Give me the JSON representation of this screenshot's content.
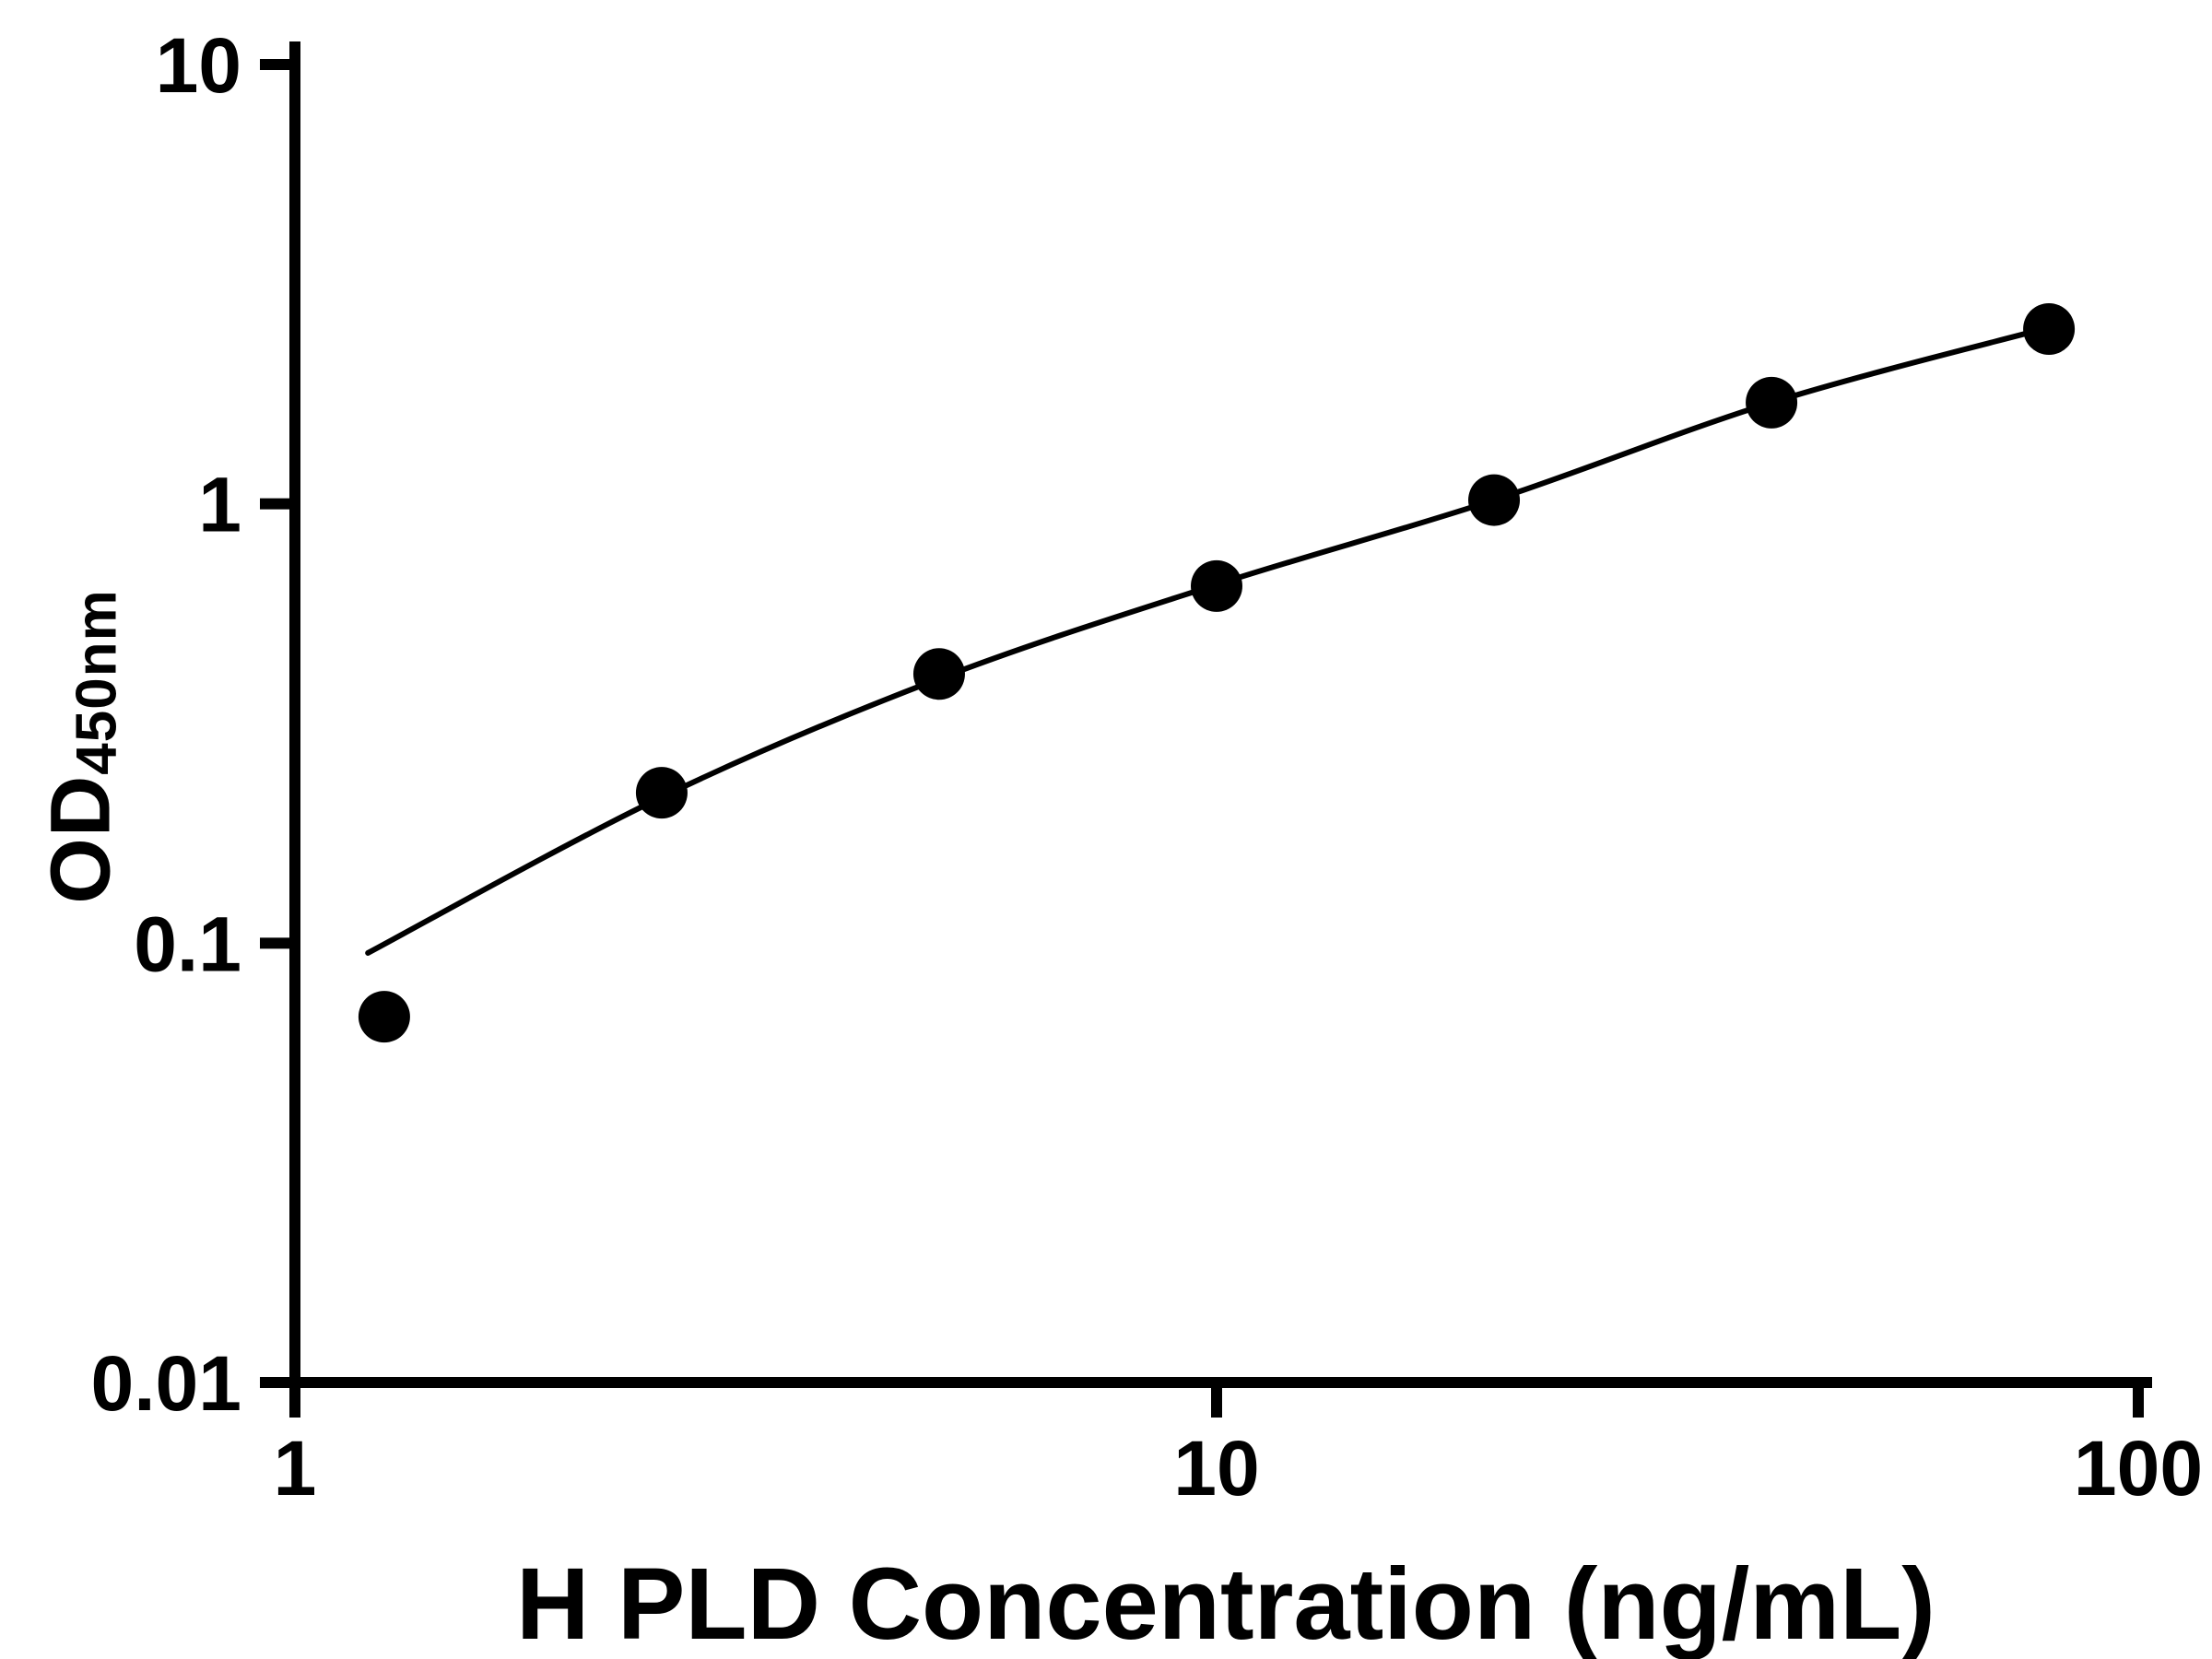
{
  "chart_data": {
    "type": "scatter",
    "title": "",
    "xlabel": "H PLD Concentration (ng/mL)",
    "ylabel": "OD450nm",
    "ylabel_main": "OD",
    "ylabel_sub": "450nm",
    "xscale": "log",
    "yscale": "log",
    "xlim": [
      1,
      100
    ],
    "ylim": [
      0.01,
      10
    ],
    "grid": false,
    "legend": null,
    "x": [
      1.25,
      2.5,
      5,
      10,
      20,
      40,
      80
    ],
    "y": [
      0.068,
      0.22,
      0.41,
      0.65,
      1.02,
      1.7,
      2.5
    ],
    "fit_curve": {
      "x": [
        1.2,
        2.5,
        5,
        10,
        20,
        40,
        80
      ],
      "y": [
        0.095,
        0.215,
        0.4,
        0.655,
        1.02,
        1.7,
        2.52
      ]
    },
    "x_ticks": [
      {
        "value": 1,
        "label": "1"
      },
      {
        "value": 10,
        "label": "10"
      },
      {
        "value": 100,
        "label": "100"
      }
    ],
    "y_ticks": [
      {
        "value": 0.01,
        "label": "0.01"
      },
      {
        "value": 0.1,
        "label": "0.1"
      },
      {
        "value": 1,
        "label": "1"
      },
      {
        "value": 10,
        "label": "10"
      }
    ],
    "marker_color": "#000000",
    "line_color": "#000000",
    "axis_color": "#000000",
    "background": "#ffffff"
  }
}
